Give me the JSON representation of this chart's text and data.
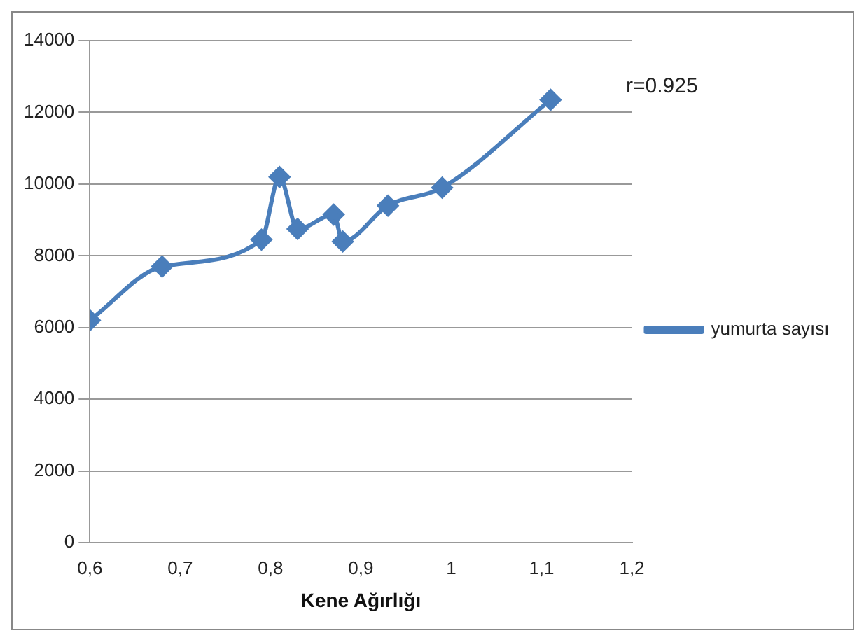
{
  "chart_data": {
    "type": "line",
    "xlabel": "Kene Ağırlığı",
    "annotations": [
      "r=0.925"
    ],
    "x": [
      0.6,
      0.68,
      0.79,
      0.81,
      0.83,
      0.87,
      0.88,
      0.93,
      0.99,
      1.11
    ],
    "series": [
      {
        "name": "yumurta sayısı",
        "color": "#4a7ebb",
        "values": [
          6200,
          7700,
          8450,
          10200,
          8750,
          9150,
          8400,
          9400,
          9900,
          12350
        ]
      }
    ],
    "xlim": [
      0.6,
      1.2
    ],
    "xticks": [
      {
        "value": 0.6,
        "label": "0,6"
      },
      {
        "value": 0.7,
        "label": "0,7"
      },
      {
        "value": 0.8,
        "label": "0,8"
      },
      {
        "value": 0.9,
        "label": "0,9"
      },
      {
        "value": 1,
        "label": "1"
      },
      {
        "value": 1.1,
        "label": "1,1"
      },
      {
        "value": 1.2,
        "label": "1,2"
      }
    ],
    "ylim": [
      0,
      14000
    ],
    "yticks": [
      0,
      2000,
      4000,
      6000,
      8000,
      10000,
      12000,
      14000
    ],
    "grid": "y",
    "legend": "right",
    "marker": "diamond",
    "line_style": "solid"
  }
}
